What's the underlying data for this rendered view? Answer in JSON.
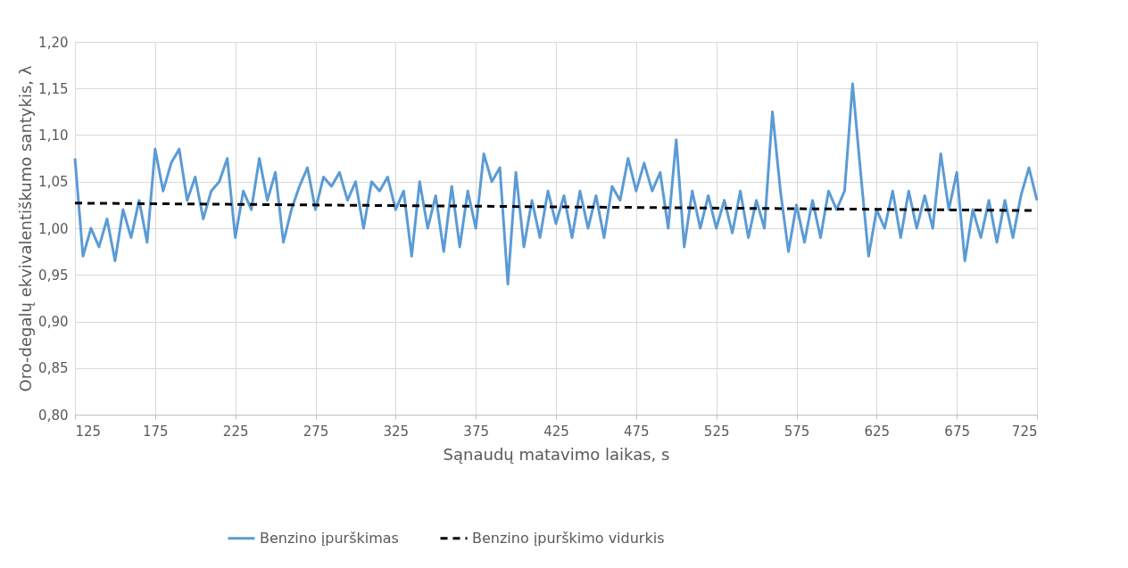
{
  "chart_data": {
    "type": "line",
    "xlabel": "Sąnaudų matavimo laikas, s",
    "ylabel": "Oro-degalų ekvivalentiškumo santykis, λ",
    "x": [
      125,
      130,
      135,
      140,
      145,
      150,
      155,
      160,
      165,
      170,
      175,
      180,
      185,
      190,
      195,
      200,
      205,
      210,
      215,
      220,
      225,
      230,
      235,
      240,
      245,
      250,
      255,
      260,
      265,
      270,
      275,
      280,
      285,
      290,
      295,
      300,
      305,
      310,
      315,
      320,
      325,
      330,
      335,
      340,
      345,
      350,
      355,
      360,
      365,
      370,
      375,
      380,
      385,
      390,
      395,
      400,
      405,
      410,
      415,
      420,
      425,
      430,
      435,
      440,
      445,
      450,
      455,
      460,
      465,
      470,
      475,
      480,
      485,
      490,
      495,
      500,
      505,
      510,
      515,
      520,
      525,
      530,
      535,
      540,
      545,
      550,
      555,
      560,
      565,
      570,
      575,
      580,
      585,
      590,
      595,
      600,
      605,
      610,
      615,
      620,
      625,
      630,
      635,
      640,
      645,
      650,
      655,
      660,
      665,
      670,
      675,
      680,
      685,
      690,
      695,
      700,
      705,
      710,
      715,
      720,
      725
    ],
    "series": [
      {
        "name": "Benzino įpurškimas",
        "color": "#5b9bd5",
        "line_style": "solid",
        "values": [
          1.075,
          0.97,
          1.0,
          0.98,
          1.01,
          0.965,
          1.02,
          0.99,
          1.03,
          0.985,
          1.085,
          1.04,
          1.07,
          1.085,
          1.03,
          1.055,
          1.01,
          1.04,
          1.05,
          1.075,
          0.99,
          1.04,
          1.02,
          1.075,
          1.03,
          1.06,
          0.985,
          1.02,
          1.045,
          1.065,
          1.02,
          1.055,
          1.045,
          1.06,
          1.03,
          1.05,
          1.0,
          1.05,
          1.04,
          1.055,
          1.02,
          1.04,
          0.97,
          1.05,
          1.0,
          1.035,
          0.975,
          1.045,
          0.98,
          1.04,
          1.0,
          1.08,
          1.05,
          1.065,
          0.94,
          1.06,
          0.98,
          1.03,
          0.99,
          1.04,
          1.005,
          1.035,
          0.99,
          1.04,
          1.0,
          1.035,
          0.99,
          1.045,
          1.03,
          1.075,
          1.04,
          1.07,
          1.04,
          1.06,
          1.0,
          1.095,
          0.98,
          1.04,
          1.0,
          1.035,
          1.0,
          1.03,
          0.995,
          1.04,
          0.99,
          1.03,
          1.0,
          1.125,
          1.04,
          0.975,
          1.025,
          0.985,
          1.03,
          0.99,
          1.04,
          1.02,
          1.04,
          1.155,
          1.06,
          0.97,
          1.02,
          1.0,
          1.04,
          0.99,
          1.04,
          1.0,
          1.035,
          1.0,
          1.08,
          1.02,
          1.06,
          0.965,
          1.02,
          0.99,
          1.03,
          0.985,
          1.03,
          0.99,
          1.035,
          1.065,
          1.03
        ]
      },
      {
        "name": "Benzino įpurškimo vidurkis",
        "color": "#000000",
        "line_style": "dashed",
        "x": [
          125,
          725
        ],
        "values": [
          1.027,
          1.019
        ]
      }
    ],
    "xlim": [
      125,
      725
    ],
    "xticks": [
      125,
      175,
      225,
      275,
      325,
      375,
      425,
      475,
      525,
      575,
      625,
      675,
      725
    ],
    "ylim": [
      0.8,
      1.2
    ],
    "yticks": [
      {
        "value": 0.8,
        "label": "0,80"
      },
      {
        "value": 0.85,
        "label": "0,85"
      },
      {
        "value": 0.9,
        "label": "0,90"
      },
      {
        "value": 0.95,
        "label": "0,95"
      },
      {
        "value": 1.0,
        "label": "1,00"
      },
      {
        "value": 1.05,
        "label": "1,05"
      },
      {
        "value": 1.1,
        "label": "1,10"
      },
      {
        "value": 1.15,
        "label": "1,15"
      },
      {
        "value": 1.2,
        "label": "1,20"
      }
    ],
    "grid": true,
    "legend": "bottom",
    "marker": "none"
  }
}
